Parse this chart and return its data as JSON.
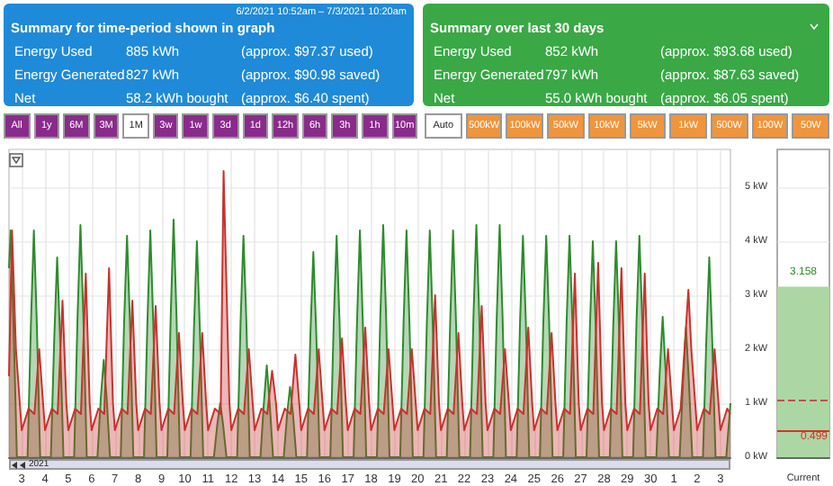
{
  "chart_data": [
    {
      "type": "other",
      "title": "Summary for time-period shown in graph",
      "subtitle": "6/2/2021 10:52am – 7/3/2021 10:20am",
      "annotations": [
        "Energy Used",
        "885 kWh",
        "(approx. $97.37 used)",
        "Energy Generated",
        "827 kWh",
        "(approx. $90.98 saved)",
        "Net",
        "58.2 kWh bought",
        "(approx. $6.40 spent)"
      ]
    },
    {
      "type": "other",
      "title": "Summary over last 30 days",
      "annotations": [
        "Energy Used",
        "852 kWh",
        "(approx. $93.68 used)",
        "Energy Generated",
        "797 kWh",
        "(approx. $87.63 saved)",
        "Net",
        "55.0 kWh bought",
        "(approx. $6.05 spent)"
      ]
    },
    {
      "type": "other",
      "annotations": [
        "All",
        "1y",
        "6M",
        "3M",
        "1M",
        "3w",
        "1w",
        "3d",
        "1d",
        "12h",
        "6h",
        "3h",
        "1h",
        "10m"
      ],
      "colors": [
        "#8a2b8c",
        "#8a2b8c",
        "#8a2b8c",
        "#8a2b8c",
        "#ffffff",
        "#8a2b8c",
        "#8a2b8c",
        "#8a2b8c",
        "#8a2b8c",
        "#8a2b8c",
        "#8a2b8c",
        "#8a2b8c",
        "#8a2b8c",
        "#8a2b8c"
      ]
    },
    {
      "type": "other",
      "annotations": [
        "Auto",
        "500kW",
        "100kW",
        "50kW",
        "10kW",
        "5kW",
        "1kW",
        "500W",
        "100W",
        "50W"
      ],
      "colors": [
        "#ffffff",
        "#f0953c",
        "#f0953c",
        "#f0953c",
        "#f0953c",
        "#f0953c",
        "#f0953c",
        "#f0953c",
        "#f0953c",
        "#f0953c"
      ]
    },
    {
      "type": "area",
      "annotations": [
        "2021"
      ],
      "grid": true,
      "xlim": [
        "2021-06-02T10:52",
        "2021-07-03T10:20"
      ],
      "ylim": [
        0,
        5.7
      ],
      "yticks": [
        {
          "value": 0,
          "label": "0 kW"
        },
        {
          "value": 1,
          "label": "1 kW"
        },
        {
          "value": 2,
          "label": "2 kW"
        },
        {
          "value": 3,
          "label": "3 kW"
        },
        {
          "value": 4,
          "label": "4 kW"
        },
        {
          "value": 5,
          "label": "5 kW"
        }
      ],
      "xticks": [
        {
          "value": "2021-06-03",
          "label": "3"
        },
        {
          "value": "2021-06-04",
          "label": "4"
        },
        {
          "value": "2021-06-05",
          "label": "5"
        },
        {
          "value": "2021-06-06",
          "label": "6"
        },
        {
          "value": "2021-06-07",
          "label": "7"
        },
        {
          "value": "2021-06-08",
          "label": "8"
        },
        {
          "value": "2021-06-09",
          "label": "9"
        },
        {
          "value": "2021-06-10",
          "label": "10"
        },
        {
          "value": "2021-06-11",
          "label": "11"
        },
        {
          "value": "2021-06-12",
          "label": "12"
        },
        {
          "value": "2021-06-13",
          "label": "13"
        },
        {
          "value": "2021-06-14",
          "label": "14"
        },
        {
          "value": "2021-06-15",
          "label": "15"
        },
        {
          "value": "2021-06-16",
          "label": "16"
        },
        {
          "value": "2021-06-17",
          "label": "17"
        },
        {
          "value": "2021-06-18",
          "label": "18"
        },
        {
          "value": "2021-06-19",
          "label": "19"
        },
        {
          "value": "2021-06-20",
          "label": "20"
        },
        {
          "value": "2021-06-21",
          "label": "21"
        },
        {
          "value": "2021-06-22",
          "label": "22"
        },
        {
          "value": "2021-06-23",
          "label": "23"
        },
        {
          "value": "2021-06-24",
          "label": "24"
        },
        {
          "value": "2021-06-25",
          "label": "25"
        },
        {
          "value": "2021-06-26",
          "label": "26"
        },
        {
          "value": "2021-06-27",
          "label": "27"
        },
        {
          "value": "2021-06-28",
          "label": "28"
        },
        {
          "value": "2021-06-29",
          "label": "29"
        },
        {
          "value": "2021-06-30",
          "label": "30"
        },
        {
          "value": "2021-07-01",
          "label": "1"
        },
        {
          "value": "2021-07-02",
          "label": "2"
        },
        {
          "value": "2021-07-03",
          "label": "3"
        }
      ],
      "series": [
        {
          "color": "#2e8b2e",
          "x": [
            "2021-06-02T10:52",
            "2021-06-02T12:30",
            "2021-06-02T15:30",
            "2021-06-02T19:00",
            "2021-06-03T06:00",
            "2021-06-03T09:30",
            "2021-06-03T12:30",
            "2021-06-03T15:30",
            "2021-06-03T19:00",
            "2021-06-04T06:00",
            "2021-06-04T09:30",
            "2021-06-04T12:30",
            "2021-06-04T15:30",
            "2021-06-04T19:00",
            "2021-06-05T06:00",
            "2021-06-05T09:30",
            "2021-06-05T12:30",
            "2021-06-05T15:30",
            "2021-06-05T19:00",
            "2021-06-06T06:00",
            "2021-06-06T09:30",
            "2021-06-06T12:30",
            "2021-06-06T15:30",
            "2021-06-06T19:00",
            "2021-06-07T06:00",
            "2021-06-07T09:30",
            "2021-06-07T12:30",
            "2021-06-07T15:30",
            "2021-06-07T19:00",
            "2021-06-08T06:00",
            "2021-06-08T09:30",
            "2021-06-08T12:30",
            "2021-06-08T15:30",
            "2021-06-08T19:00",
            "2021-06-09T06:00",
            "2021-06-09T09:30",
            "2021-06-09T12:30",
            "2021-06-09T15:30",
            "2021-06-09T19:00",
            "2021-06-10T06:00",
            "2021-06-10T09:30",
            "2021-06-10T12:30",
            "2021-06-10T15:30",
            "2021-06-10T19:00",
            "2021-06-11T06:00",
            "2021-06-11T09:30",
            "2021-06-11T12:30",
            "2021-06-11T15:30",
            "2021-06-11T19:00",
            "2021-06-12T06:00",
            "2021-06-12T09:30",
            "2021-06-12T12:30",
            "2021-06-12T15:30",
            "2021-06-12T19:00",
            "2021-06-13T06:00",
            "2021-06-13T09:30",
            "2021-06-13T12:30",
            "2021-06-13T15:30",
            "2021-06-13T19:00",
            "2021-06-14T06:00",
            "2021-06-14T09:30",
            "2021-06-14T12:30",
            "2021-06-14T15:30",
            "2021-06-14T19:00",
            "2021-06-15T06:00",
            "2021-06-15T09:30",
            "2021-06-15T12:30",
            "2021-06-15T15:30",
            "2021-06-15T19:00",
            "2021-06-16T06:00",
            "2021-06-16T09:30",
            "2021-06-16T12:30",
            "2021-06-16T15:30",
            "2021-06-16T19:00",
            "2021-06-17T06:00",
            "2021-06-17T09:30",
            "2021-06-17T12:30",
            "2021-06-17T15:30",
            "2021-06-17T19:00",
            "2021-06-18T06:00",
            "2021-06-18T09:30",
            "2021-06-18T12:30",
            "2021-06-18T15:30",
            "2021-06-18T19:00",
            "2021-06-19T06:00",
            "2021-06-19T09:30",
            "2021-06-19T12:30",
            "2021-06-19T15:30",
            "2021-06-19T19:00",
            "2021-06-20T06:00",
            "2021-06-20T09:30",
            "2021-06-20T12:30",
            "2021-06-20T15:30",
            "2021-06-20T19:00",
            "2021-06-21T06:00",
            "2021-06-21T09:30",
            "2021-06-21T12:30",
            "2021-06-21T15:30",
            "2021-06-21T19:00",
            "2021-06-22T06:00",
            "2021-06-22T09:30",
            "2021-06-22T12:30",
            "2021-06-22T15:30",
            "2021-06-22T19:00",
            "2021-06-23T06:00",
            "2021-06-23T09:30",
            "2021-06-23T12:30",
            "2021-06-23T15:30",
            "2021-06-23T19:00",
            "2021-06-24T06:00",
            "2021-06-24T09:30",
            "2021-06-24T12:30",
            "2021-06-24T15:30",
            "2021-06-24T19:00",
            "2021-06-25T06:00",
            "2021-06-25T09:30",
            "2021-06-25T12:30",
            "2021-06-25T15:30",
            "2021-06-25T19:00",
            "2021-06-26T06:00",
            "2021-06-26T09:30",
            "2021-06-26T12:30",
            "2021-06-26T15:30",
            "2021-06-26T19:00",
            "2021-06-27T06:00",
            "2021-06-27T09:30",
            "2021-06-27T12:30",
            "2021-06-27T15:30",
            "2021-06-27T19:00",
            "2021-06-28T06:00",
            "2021-06-28T09:30",
            "2021-06-28T12:30",
            "2021-06-28T15:30",
            "2021-06-28T19:00",
            "2021-06-29T06:00",
            "2021-06-29T09:30",
            "2021-06-29T12:30",
            "2021-06-29T15:30",
            "2021-06-29T19:00",
            "2021-06-30T06:00",
            "2021-06-30T09:30",
            "2021-06-30T12:30",
            "2021-06-30T15:30",
            "2021-06-30T19:00",
            "2021-07-01T06:00",
            "2021-07-01T09:30",
            "2021-07-01T12:30",
            "2021-07-01T15:30",
            "2021-07-01T19:00",
            "2021-07-02T06:00",
            "2021-07-02T09:30",
            "2021-07-02T12:30",
            "2021-07-02T15:30",
            "2021-07-02T19:00",
            "2021-07-03T06:00",
            "2021-07-03T09:30",
            "2021-07-03T10:20"
          ],
          "values": [
            3.5,
            4.2,
            2.5,
            0,
            0,
            2.5,
            4.2,
            2.5,
            0,
            0,
            2.2,
            3.7,
            2.2,
            0,
            0,
            2.6,
            4.3,
            2.6,
            0,
            0,
            1.1,
            1.8,
            1.1,
            0,
            0,
            2.5,
            4.1,
            2.5,
            0,
            0,
            2.5,
            4.2,
            2.5,
            0,
            0,
            2.6,
            4.4,
            2.6,
            0,
            0,
            2.4,
            4.0,
            2.4,
            0,
            0,
            0.6,
            1.0,
            0.6,
            0,
            0,
            2.5,
            4.1,
            2.5,
            0,
            0,
            1.0,
            1.7,
            1.0,
            0,
            0,
            0.8,
            1.3,
            0.8,
            0,
            0,
            2.3,
            3.8,
            2.3,
            0,
            0,
            2.5,
            4.1,
            2.5,
            0,
            0,
            2.5,
            4.2,
            2.5,
            0,
            0,
            2.6,
            4.3,
            2.6,
            0,
            0,
            2.5,
            4.2,
            2.5,
            0,
            0,
            2.5,
            4.2,
            2.5,
            0,
            0,
            2.5,
            4.2,
            2.5,
            0,
            0,
            2.6,
            4.3,
            2.6,
            0,
            0,
            2.6,
            4.3,
            2.6,
            0,
            0,
            2.5,
            4.1,
            2.5,
            0,
            0,
            2.5,
            4.1,
            2.5,
            0,
            0,
            2.5,
            4.1,
            2.5,
            0,
            0,
            2.4,
            4.0,
            2.4,
            0,
            0,
            2.4,
            4.0,
            2.4,
            0,
            0,
            2.5,
            4.1,
            2.5,
            0,
            0,
            1.6,
            2.6,
            1.6,
            0,
            0,
            1.4,
            2.4,
            1.4,
            0,
            0,
            2.2,
            3.7,
            2.2,
            0,
            0,
            0.8,
            1.0
          ]
        },
        {
          "color": "#c8322d",
          "x": [
            "2021-06-02T10:52",
            "2021-06-02T14:00",
            "2021-06-02T18:00",
            "2021-06-02T22:00",
            "2021-06-03T00:00",
            "2021-06-03T07:00",
            "2021-06-03T13:00",
            "2021-06-03T18:00",
            "2021-06-03T22:00",
            "2021-06-04T00:00",
            "2021-06-04T07:00",
            "2021-06-04T13:00",
            "2021-06-04T18:00",
            "2021-06-04T22:00",
            "2021-06-05T00:00",
            "2021-06-05T07:00",
            "2021-06-05T13:00",
            "2021-06-05T18:00",
            "2021-06-05T22:00",
            "2021-06-06T00:00",
            "2021-06-06T07:00",
            "2021-06-06T13:00",
            "2021-06-06T18:00",
            "2021-06-06T22:00",
            "2021-06-07T00:00",
            "2021-06-07T07:00",
            "2021-06-07T13:00",
            "2021-06-07T18:00",
            "2021-06-07T22:00",
            "2021-06-08T00:00",
            "2021-06-08T07:00",
            "2021-06-08T13:00",
            "2021-06-08T18:00",
            "2021-06-08T22:00",
            "2021-06-09T00:00",
            "2021-06-09T07:00",
            "2021-06-09T13:00",
            "2021-06-09T18:00",
            "2021-06-09T22:00",
            "2021-06-10T00:00",
            "2021-06-10T07:00",
            "2021-06-10T13:00",
            "2021-06-10T18:00",
            "2021-06-10T22:00",
            "2021-06-11T00:00",
            "2021-06-11T07:00",
            "2021-06-11T13:00",
            "2021-06-11T16:00",
            "2021-06-11T22:00",
            "2021-06-12T00:00",
            "2021-06-12T07:00",
            "2021-06-12T13:00",
            "2021-06-12T18:00",
            "2021-06-12T22:00",
            "2021-06-13T00:00",
            "2021-06-13T07:00",
            "2021-06-13T13:00",
            "2021-06-13T18:00",
            "2021-06-13T22:00",
            "2021-06-14T00:00",
            "2021-06-14T07:00",
            "2021-06-14T13:00",
            "2021-06-14T18:00",
            "2021-06-14T22:00",
            "2021-06-15T00:00",
            "2021-06-15T07:00",
            "2021-06-15T13:00",
            "2021-06-15T18:00",
            "2021-06-15T22:00",
            "2021-06-16T00:00",
            "2021-06-16T07:00",
            "2021-06-16T13:00",
            "2021-06-16T18:00",
            "2021-06-16T22:00",
            "2021-06-17T00:00",
            "2021-06-17T07:00",
            "2021-06-17T13:00",
            "2021-06-17T18:00",
            "2021-06-17T22:00",
            "2021-06-18T00:00",
            "2021-06-18T07:00",
            "2021-06-18T13:00",
            "2021-06-18T18:00",
            "2021-06-18T22:00",
            "2021-06-19T00:00",
            "2021-06-19T07:00",
            "2021-06-19T13:00",
            "2021-06-19T18:00",
            "2021-06-19T22:00",
            "2021-06-20T00:00",
            "2021-06-20T07:00",
            "2021-06-20T13:00",
            "2021-06-20T18:00",
            "2021-06-20T22:00",
            "2021-06-21T00:00",
            "2021-06-21T07:00",
            "2021-06-21T13:00",
            "2021-06-21T18:00",
            "2021-06-21T22:00",
            "2021-06-22T00:00",
            "2021-06-22T07:00",
            "2021-06-22T13:00",
            "2021-06-22T18:00",
            "2021-06-22T22:00",
            "2021-06-23T00:00",
            "2021-06-23T07:00",
            "2021-06-23T13:00",
            "2021-06-23T18:00",
            "2021-06-23T22:00",
            "2021-06-24T00:00",
            "2021-06-24T07:00",
            "2021-06-24T13:00",
            "2021-06-24T18:00",
            "2021-06-24T22:00",
            "2021-06-25T00:00",
            "2021-06-25T07:00",
            "2021-06-25T13:00",
            "2021-06-25T18:00",
            "2021-06-25T22:00",
            "2021-06-26T00:00",
            "2021-06-26T07:00",
            "2021-06-26T13:00",
            "2021-06-26T18:00",
            "2021-06-26T22:00",
            "2021-06-27T00:00",
            "2021-06-27T07:00",
            "2021-06-27T13:00",
            "2021-06-27T18:00",
            "2021-06-27T22:00",
            "2021-06-28T00:00",
            "2021-06-28T07:00",
            "2021-06-28T13:00",
            "2021-06-28T18:00",
            "2021-06-28T22:00",
            "2021-06-29T00:00",
            "2021-06-29T07:00",
            "2021-06-29T13:00",
            "2021-06-29T18:00",
            "2021-06-29T22:00",
            "2021-06-30T00:00",
            "2021-06-30T07:00",
            "2021-06-30T13:00",
            "2021-06-30T18:00",
            "2021-06-30T22:00",
            "2021-07-01T00:00",
            "2021-07-01T07:00",
            "2021-07-01T15:00",
            "2021-07-01T18:00",
            "2021-07-01T22:00",
            "2021-07-02T00:00",
            "2021-07-02T07:00",
            "2021-07-02T13:00",
            "2021-07-02T18:00",
            "2021-07-02T22:00",
            "2021-07-03T00:00",
            "2021-07-03T07:00",
            "2021-07-03T10:20"
          ],
          "values": [
            1.5,
            4.2,
            2.0,
            1.0,
            0.5,
            0.9,
            0.8,
            2.0,
            1.0,
            0.5,
            0.9,
            0.8,
            2.9,
            1.0,
            0.5,
            0.9,
            0.8,
            3.4,
            1.0,
            0.5,
            0.9,
            0.8,
            3.5,
            1.0,
            0.5,
            0.9,
            0.8,
            2.9,
            1.0,
            0.5,
            0.9,
            0.8,
            2.8,
            1.0,
            0.5,
            0.9,
            0.8,
            2.3,
            1.0,
            0.5,
            0.9,
            0.8,
            2.3,
            1.0,
            0.5,
            0.9,
            0.8,
            5.3,
            1.0,
            0.5,
            0.9,
            0.8,
            2.0,
            1.0,
            0.5,
            0.9,
            0.8,
            1.6,
            1.0,
            0.5,
            0.9,
            0.8,
            1.9,
            1.0,
            0.5,
            0.9,
            0.8,
            2.0,
            1.0,
            0.5,
            0.9,
            0.8,
            2.2,
            1.0,
            0.5,
            0.9,
            0.8,
            2.4,
            1.0,
            0.5,
            0.9,
            0.8,
            2.0,
            1.0,
            0.5,
            0.9,
            0.8,
            2.0,
            1.0,
            0.5,
            0.9,
            0.8,
            3.0,
            1.0,
            0.5,
            0.9,
            0.8,
            2.3,
            1.0,
            0.5,
            0.9,
            0.8,
            2.8,
            1.0,
            0.5,
            0.9,
            0.8,
            2.0,
            1.0,
            0.5,
            0.9,
            0.8,
            2.4,
            1.0,
            0.5,
            0.9,
            0.8,
            2.3,
            1.0,
            0.5,
            0.9,
            0.8,
            3.4,
            1.0,
            0.5,
            0.9,
            0.8,
            3.6,
            1.0,
            0.5,
            0.9,
            0.8,
            3.5,
            1.0,
            0.5,
            0.9,
            0.8,
            3.4,
            1.0,
            0.5,
            0.9,
            0.8,
            2.0,
            1.0,
            0.5,
            0.9,
            3.1,
            2.0,
            1.0,
            0.5,
            0.9,
            0.8,
            2.0,
            1.0,
            0.5,
            0.9,
            0.8
          ]
        }
      ]
    },
    {
      "type": "bar",
      "categories": [
        "Current"
      ],
      "ylim": [
        0,
        5.7
      ],
      "yticks": [
        0,
        1,
        2,
        3,
        4,
        5
      ],
      "tick_labels": "x",
      "grid": "y",
      "data_labels": true,
      "series": [
        {
          "color": "#acd7a4",
          "values": [
            3.158
          ]
        }
      ],
      "ref_lines": [
        {
          "axis": "y",
          "value": 0.499,
          "label": "0.499",
          "color": "#d9302a"
        },
        {
          "axis": "y",
          "value": 1.05,
          "color": "#c0504d",
          "line_style": "dashed"
        }
      ]
    }
  ]
}
